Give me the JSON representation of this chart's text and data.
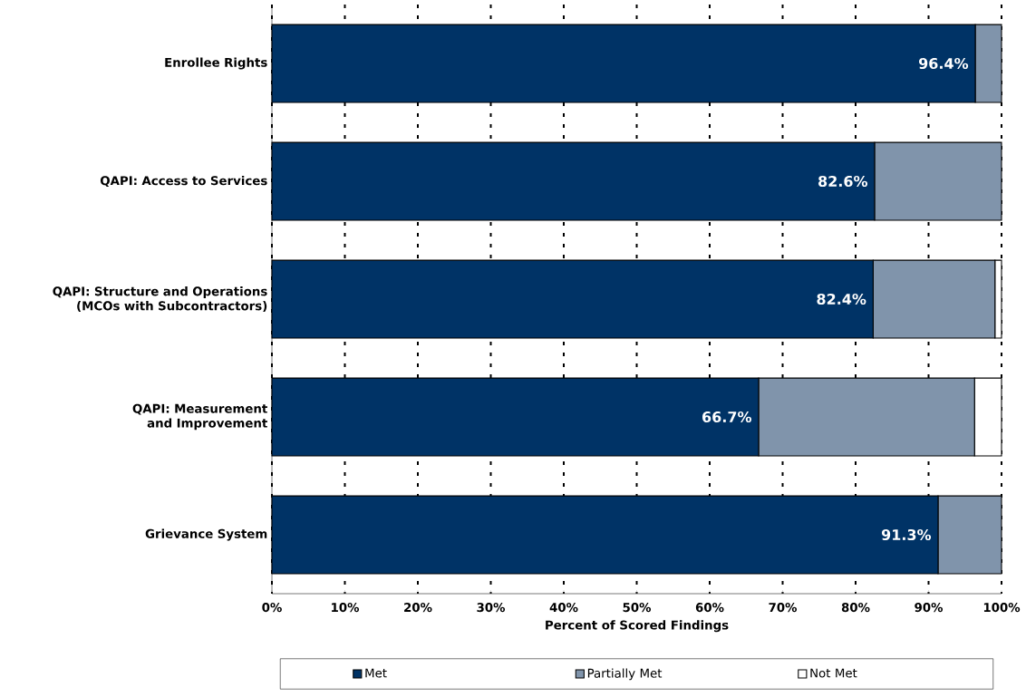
{
  "chart_data": {
    "type": "bar",
    "orientation": "horizontal",
    "stacked": true,
    "categories": [
      "Enrollee Rights",
      "QAPI:  Access to Services",
      "QAPI:  Structure and Operations (MCOs with Subcontractors)",
      "QAPI:  Measurement and Improvement",
      "Grievance System"
    ],
    "series": [
      {
        "name": "Met",
        "color": "#003366",
        "values": [
          96.4,
          82.6,
          82.4,
          66.7,
          91.3
        ],
        "value_labels": [
          "96.4%",
          "82.6%",
          "82.4%",
          "66.7%",
          "91.3%"
        ]
      },
      {
        "name": "Partially Met",
        "color": "#8094ab",
        "values": [
          3.6,
          17.4,
          16.7,
          29.6,
          8.7
        ]
      },
      {
        "name": "Not Met",
        "color": "#ffffff",
        "values": [
          0,
          0,
          0.9,
          3.7,
          0
        ]
      }
    ],
    "xlim": [
      0,
      100
    ],
    "xticks": [
      {
        "value": 0,
        "label": "0%"
      },
      {
        "value": 10,
        "label": "10%"
      },
      {
        "value": 20,
        "label": "20%"
      },
      {
        "value": 30,
        "label": "30%"
      },
      {
        "value": 40,
        "label": "40%"
      },
      {
        "value": 50,
        "label": "50%"
      },
      {
        "value": 60,
        "label": "60%"
      },
      {
        "value": 70,
        "label": "70%"
      },
      {
        "value": 80,
        "label": "80%"
      },
      {
        "value": 90,
        "label": "90%"
      },
      {
        "value": 100,
        "label": "100%"
      }
    ],
    "xlabel": "Percent of Scored Findings",
    "grid": "x",
    "legend": "bottom"
  }
}
